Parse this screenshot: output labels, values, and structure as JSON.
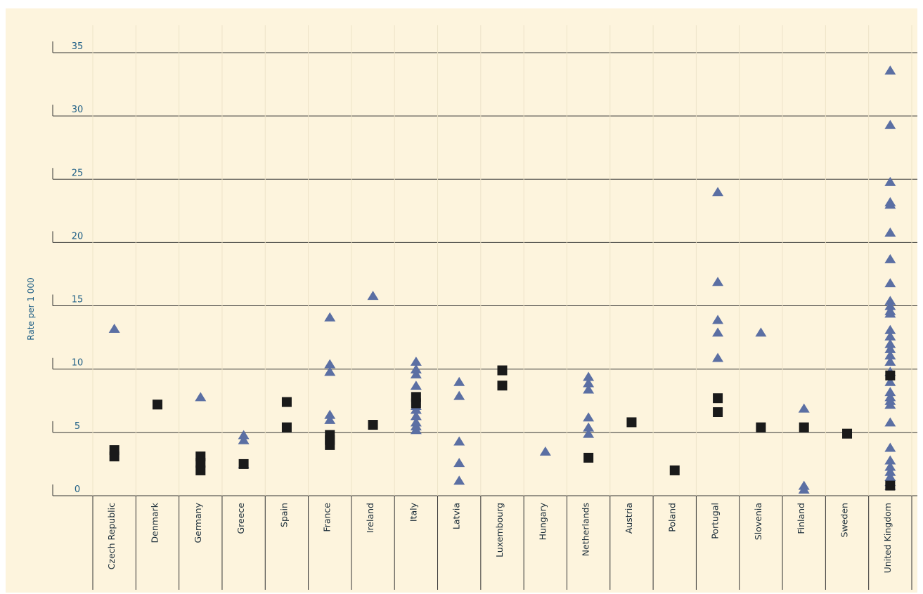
{
  "chart_data": {
    "type": "scatter",
    "title": "",
    "ylabel": "Rate per 1 000",
    "xlabel": "",
    "ylim": [
      0,
      37
    ],
    "yticks": [
      0,
      5,
      10,
      15,
      20,
      25,
      30,
      35
    ],
    "ytick_labels": [
      "0",
      "5",
      "10",
      "15",
      "20",
      "25",
      "30",
      "35"
    ],
    "grid": true,
    "colors": {
      "background": "#fdf4dd",
      "grid": "#333333",
      "axis_text": "#1f5f86",
      "triangle": "#5b6fa3",
      "square": "#1a1a1a"
    },
    "categories": [
      "Czech Republic",
      "Denmark",
      "Germany",
      "Greece",
      "Spain",
      "France",
      "Ireland",
      "Italy",
      "Latvia",
      "Luxembourg",
      "Hungary",
      "Netherlands",
      "Austria",
      "Poland",
      "Portugal",
      "Slovenia",
      "Finland",
      "Sweden",
      "United Kingdom"
    ],
    "series": [
      {
        "marker": "triangle",
        "points": [
          [
            "Czech Republic",
            13.2
          ],
          [
            "Germany",
            7.8
          ],
          [
            "Greece",
            4.8
          ],
          [
            "Greece",
            4.4
          ],
          [
            "Greece",
            2.5
          ],
          [
            "France",
            14.1
          ],
          [
            "France",
            10.4
          ],
          [
            "France",
            9.8
          ],
          [
            "France",
            6.4
          ],
          [
            "France",
            6.0
          ],
          [
            "Ireland",
            15.8
          ],
          [
            "Italy",
            10.6
          ],
          [
            "Italy",
            10.0
          ],
          [
            "Italy",
            9.6
          ],
          [
            "Italy",
            8.7
          ],
          [
            "Italy",
            7.1
          ],
          [
            "Italy",
            6.8
          ],
          [
            "Italy",
            6.3
          ],
          [
            "Italy",
            5.8
          ],
          [
            "Italy",
            5.5
          ],
          [
            "Italy",
            5.2
          ],
          [
            "Latvia",
            9.0
          ],
          [
            "Latvia",
            7.9
          ],
          [
            "Latvia",
            4.3
          ],
          [
            "Latvia",
            2.6
          ],
          [
            "Latvia",
            1.2
          ],
          [
            "Hungary",
            3.5
          ],
          [
            "Netherlands",
            9.4
          ],
          [
            "Netherlands",
            8.9
          ],
          [
            "Netherlands",
            8.4
          ],
          [
            "Netherlands",
            6.2
          ],
          [
            "Netherlands",
            5.4
          ],
          [
            "Netherlands",
            4.9
          ],
          [
            "Portugal",
            24.0
          ],
          [
            "Portugal",
            16.9
          ],
          [
            "Portugal",
            13.9
          ],
          [
            "Portugal",
            12.9
          ],
          [
            "Portugal",
            10.9
          ],
          [
            "Slovenia",
            12.9
          ],
          [
            "Finland",
            6.9
          ],
          [
            "Finland",
            0.8
          ],
          [
            "Finland",
            0.5
          ],
          [
            "United Kingdom",
            33.6
          ],
          [
            "United Kingdom",
            29.3
          ],
          [
            "United Kingdom",
            24.8
          ],
          [
            "United Kingdom",
            23.2
          ],
          [
            "United Kingdom",
            23.0
          ],
          [
            "United Kingdom",
            20.8
          ],
          [
            "United Kingdom",
            18.7
          ],
          [
            "United Kingdom",
            16.8
          ],
          [
            "United Kingdom",
            15.4
          ],
          [
            "United Kingdom",
            15.0
          ],
          [
            "United Kingdom",
            14.6
          ],
          [
            "United Kingdom",
            14.4
          ],
          [
            "United Kingdom",
            13.1
          ],
          [
            "United Kingdom",
            12.6
          ],
          [
            "United Kingdom",
            12.0
          ],
          [
            "United Kingdom",
            11.6
          ],
          [
            "United Kingdom",
            11.1
          ],
          [
            "United Kingdom",
            10.6
          ],
          [
            "United Kingdom",
            9.8
          ],
          [
            "United Kingdom",
            9.0
          ],
          [
            "United Kingdom",
            8.2
          ],
          [
            "United Kingdom",
            7.8
          ],
          [
            "United Kingdom",
            7.5
          ],
          [
            "United Kingdom",
            7.2
          ],
          [
            "United Kingdom",
            5.8
          ],
          [
            "United Kingdom",
            3.8
          ],
          [
            "United Kingdom",
            2.8
          ],
          [
            "United Kingdom",
            2.3
          ],
          [
            "United Kingdom",
            1.9
          ],
          [
            "United Kingdom",
            1.5
          ],
          [
            "United Kingdom",
            1.1
          ],
          [
            "United Kingdom",
            0.8
          ]
        ]
      },
      {
        "marker": "square",
        "points": [
          [
            "Czech Republic",
            3.6
          ],
          [
            "Czech Republic",
            3.1
          ],
          [
            "Denmark",
            7.2
          ],
          [
            "Germany",
            3.1
          ],
          [
            "Germany",
            2.6
          ],
          [
            "Germany",
            2.0
          ],
          [
            "Greece",
            2.5
          ],
          [
            "Spain",
            7.4
          ],
          [
            "Spain",
            5.4
          ],
          [
            "France",
            4.8
          ],
          [
            "France",
            4.4
          ],
          [
            "France",
            4.0
          ],
          [
            "Ireland",
            5.6
          ],
          [
            "Italy",
            7.8
          ],
          [
            "Italy",
            7.3
          ],
          [
            "Luxembourg",
            9.9
          ],
          [
            "Luxembourg",
            8.7
          ],
          [
            "Netherlands",
            3.0
          ],
          [
            "Austria",
            5.8
          ],
          [
            "Poland",
            2.0
          ],
          [
            "Portugal",
            7.7
          ],
          [
            "Portugal",
            6.6
          ],
          [
            "Slovenia",
            5.4
          ],
          [
            "Finland",
            5.4
          ],
          [
            "Sweden",
            4.9
          ],
          [
            "United Kingdom",
            9.5
          ],
          [
            "United Kingdom",
            0.8
          ]
        ]
      }
    ]
  }
}
